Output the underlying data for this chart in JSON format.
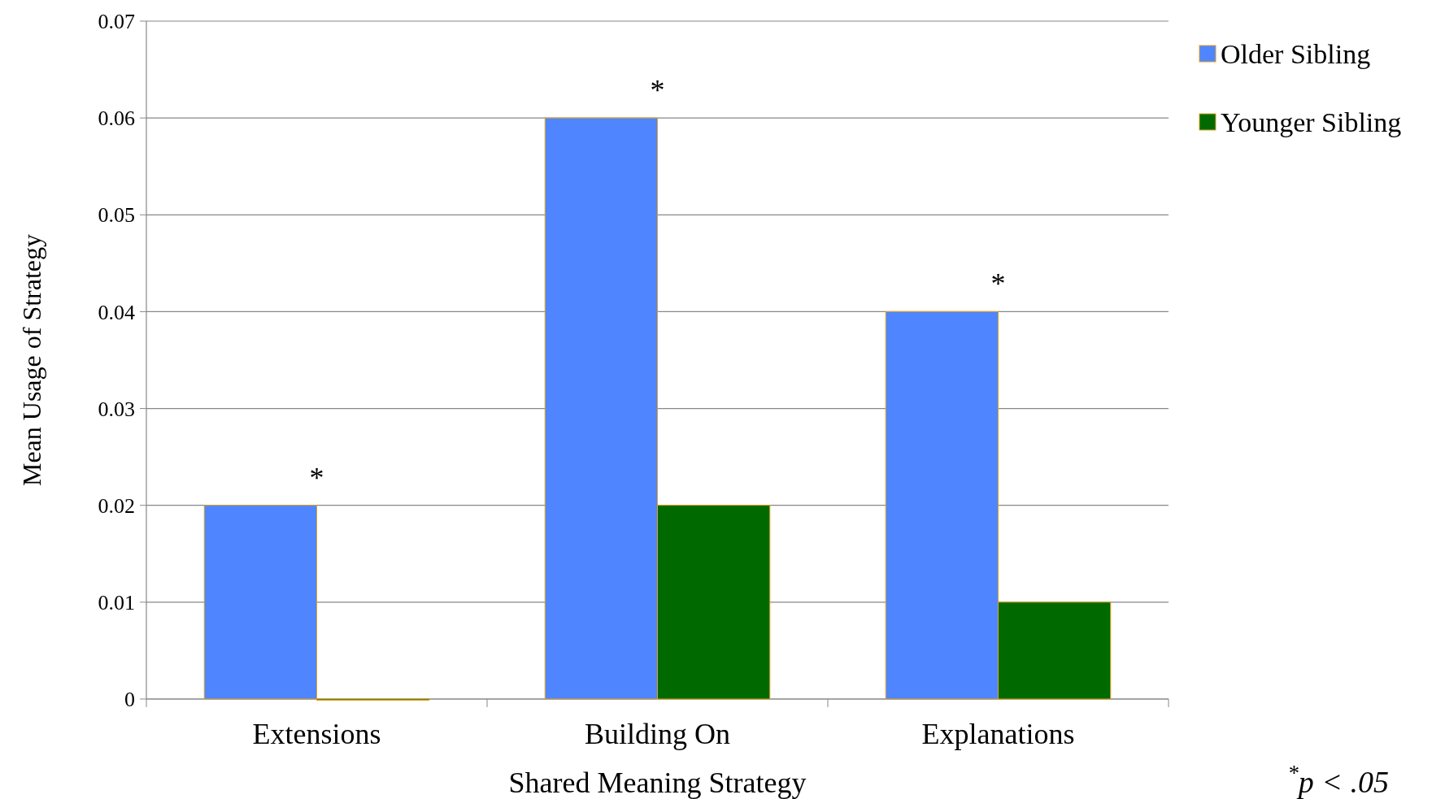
{
  "chart_data": {
    "type": "bar",
    "xlabel": "Shared Meaning Strategy",
    "ylabel": "Mean Usage of Strategy",
    "categories": [
      "Extensions",
      "Building On",
      "Explanations"
    ],
    "series": [
      {
        "name": "Older Sibling",
        "color": "#4f86ff",
        "values": [
          0.02,
          0.06,
          0.04
        ]
      },
      {
        "name": "Younger Sibling",
        "color": "#006a00",
        "values": [
          0,
          0.02,
          0.01
        ]
      }
    ],
    "ylim": [
      0,
      0.07
    ],
    "yticks": [
      0,
      0.01,
      0.02,
      0.03,
      0.04,
      0.05,
      0.06,
      0.07
    ],
    "grid": "y",
    "legend": "top right",
    "annotations": [
      {
        "text": "*",
        "x": "Extensions",
        "y": 0.02
      },
      {
        "text": "*",
        "x": "Building On",
        "y": 0.06
      },
      {
        "text": "*",
        "x": "Explanations",
        "y": 0.04
      },
      "$^{*}$p < .05"
    ]
  }
}
